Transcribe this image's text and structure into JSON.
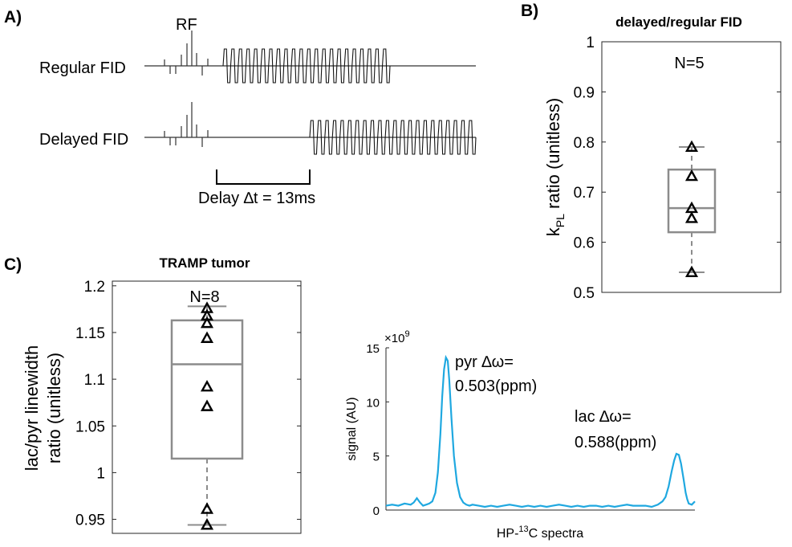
{
  "panel_labels": {
    "a": "A)",
    "b": "B)",
    "c": "C)"
  },
  "diagram": {
    "rf_label": "RF",
    "regular_label": "Regular FID",
    "delayed_label": "Delayed FID",
    "delay_label": "Delay ∆t = 13ms"
  },
  "chart_data": [
    {
      "id": "B",
      "type": "box",
      "title": "delayed/regular FID",
      "ylabel_main": "k",
      "ylabel_sub": "PL",
      "ylabel_rest": " ratio (unitless)",
      "xlabel": "",
      "annotation": "N=5",
      "ylim": [
        0.5,
        1.0
      ],
      "yticks": [
        0.5,
        0.6,
        0.7,
        0.8,
        0.9,
        1.0
      ],
      "ytick_labels": [
        "0.5",
        "0.6",
        "0.7",
        "0.8",
        "0.9",
        "1"
      ],
      "box": {
        "q1": 0.62,
        "median": 0.668,
        "q3": 0.745,
        "whisker_low": 0.54,
        "whisker_high": 0.79
      },
      "points": [
        0.79,
        0.732,
        0.668,
        0.648,
        0.54
      ]
    },
    {
      "id": "C",
      "type": "box",
      "title": "TRAMP tumor",
      "ylabel_line1": "lac/pyr linewidth",
      "ylabel_line2": "ratio (unitless)",
      "xlabel": "",
      "annotation": "N=8",
      "ylim": [
        0.935,
        1.205
      ],
      "yticks": [
        0.95,
        1.0,
        1.05,
        1.1,
        1.15,
        1.2
      ],
      "ytick_labels": [
        "0.95",
        "1",
        "1.05",
        "1.1",
        "1.15",
        "1.2"
      ],
      "box": {
        "q1": 1.015,
        "median": 1.116,
        "q3": 1.163,
        "whisker_low": 0.944,
        "whisker_high": 1.178
      },
      "points": [
        1.176,
        1.168,
        1.16,
        1.144,
        1.092,
        1.071,
        0.961,
        0.944
      ]
    },
    {
      "id": "spectrum",
      "type": "line",
      "ylabel": "signal (AU)",
      "xlabel_main": "HP-",
      "xlabel_sup": "13",
      "xlabel_rest": "C spectra",
      "y_exponent": "×10",
      "y_exponent_power": "9",
      "ylim": [
        0,
        15
      ],
      "yticks": [
        0,
        5,
        10,
        15
      ],
      "ytick_labels": [
        "0",
        "5",
        "10",
        "15"
      ],
      "xlim": [
        0,
        100
      ],
      "color": "#1fa8e0",
      "annotations": {
        "pyr_line1": "pyr ∆ω=",
        "pyr_line2": "0.503(ppm)",
        "lac_line1": "lac ∆ω=",
        "lac_line2": "0.588(ppm)"
      },
      "series": [
        {
          "x": [
            0,
            2,
            4,
            6,
            8,
            9,
            10,
            11,
            12,
            13,
            14,
            15,
            16,
            16.8,
            17.6,
            18.2,
            18.8,
            19.4,
            20,
            20.5,
            21.2,
            22,
            23,
            24,
            25,
            26,
            27,
            28,
            30,
            32,
            34,
            36,
            38,
            40,
            42,
            44,
            46,
            48,
            50,
            52,
            54,
            56,
            58,
            60,
            62,
            64,
            66,
            68,
            70,
            72,
            74,
            76,
            78,
            80,
            82,
            84,
            86,
            88,
            89.5,
            90.5,
            91.5,
            92.5,
            93.3,
            94,
            94.8,
            95.5,
            96.3,
            97,
            97.5,
            98,
            99,
            100
          ],
          "y": [
            0.4,
            0.5,
            0.4,
            0.6,
            0.5,
            0.7,
            1.1,
            0.7,
            0.4,
            0.5,
            0.6,
            0.8,
            1.6,
            3.5,
            7.0,
            10.5,
            13.0,
            14.1,
            13.8,
            12.0,
            8.5,
            5.0,
            2.5,
            1.2,
            0.7,
            0.5,
            0.4,
            0.5,
            0.4,
            0.3,
            0.4,
            0.3,
            0.4,
            0.5,
            0.4,
            0.3,
            0.4,
            0.3,
            0.4,
            0.3,
            0.4,
            0.5,
            0.4,
            0.3,
            0.4,
            0.3,
            0.4,
            0.4,
            0.3,
            0.4,
            0.3,
            0.4,
            0.5,
            0.4,
            0.4,
            0.4,
            0.3,
            0.5,
            0.8,
            1.2,
            2.2,
            3.6,
            4.6,
            5.2,
            5.1,
            4.3,
            2.9,
            1.6,
            1.0,
            0.6,
            0.5,
            0.8
          ]
        }
      ]
    }
  ]
}
